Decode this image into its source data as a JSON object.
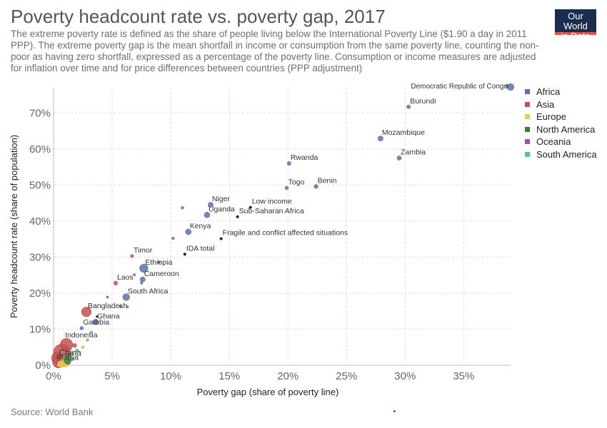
{
  "title": "Poverty headcount rate vs. poverty gap, 2017",
  "subtitle": "The extreme poverty rate is defined as the share of people living below the International Poverty Line ($1.90 a day in 2011 PPP). The extreme poverty gap is the mean shortfall in income or consumption from the same poverty line, counting the non-poor as having zero shortfall, expressed as a percentage of the poverty line. Consumption or income measures are adjusted for inflation over time and for price differences between countries (PPP adjustment)",
  "logo": {
    "line1": "Our World",
    "line2": "in Data"
  },
  "source": "Source: World Bank",
  "colors": {
    "Africa": "#5a72b0",
    "Asia": "#c6504f",
    "Europe": "#f2c94c",
    "North America": "#3d7a3d",
    "Oceania": "#a64cbc",
    "South America": "#5fc08e",
    "aggregate": "#222222"
  },
  "legend": [
    "Africa",
    "Asia",
    "Europe",
    "North America",
    "Oceania",
    "South America"
  ],
  "chart_data": {
    "type": "scatter",
    "title": "Poverty headcount rate vs. poverty gap, 2017",
    "xlabel": "Poverty gap (share of poverty line)",
    "ylabel": "Poverty headcount rate (share of population)",
    "xlim": [
      0,
      39
    ],
    "ylim": [
      0,
      77
    ],
    "x_ticks": [
      0,
      5,
      10,
      15,
      20,
      25,
      30,
      35
    ],
    "x_tick_labels": [
      "0%",
      "5%",
      "10%",
      "15%",
      "20%",
      "25%",
      "30%",
      "35%"
    ],
    "y_ticks": [
      0,
      10,
      20,
      30,
      40,
      50,
      60,
      70
    ],
    "y_tick_labels": [
      "0%",
      "10%",
      "20%",
      "30%",
      "40%",
      "50%",
      "60%",
      "70%"
    ],
    "grid": true,
    "legend_position": "right",
    "points": [
      {
        "label": "Democratic Republic of Congo",
        "x": 39.0,
        "y": 77.2,
        "group": "Africa",
        "r": 5
      },
      {
        "label": "",
        "x": 38.7,
        "y": 77.5,
        "group": "Africa",
        "r": 2.5
      },
      {
        "label": "Burundi",
        "x": 30.3,
        "y": 71.7,
        "group": "Africa",
        "r": 2.8
      },
      {
        "label": "Mozambique",
        "x": 27.9,
        "y": 62.9,
        "group": "Africa",
        "r": 3.8
      },
      {
        "label": "Zambia",
        "x": 29.5,
        "y": 57.5,
        "group": "Africa",
        "r": 3.2
      },
      {
        "label": "Rwanda",
        "x": 20.1,
        "y": 56.0,
        "group": "Africa",
        "r": 2.8
      },
      {
        "label": "Togo",
        "x": 19.9,
        "y": 49.2,
        "group": "Africa",
        "r": 2.6
      },
      {
        "label": "Benin",
        "x": 22.4,
        "y": 49.6,
        "group": "Africa",
        "r": 3.0
      },
      {
        "label": "Niger",
        "x": 13.4,
        "y": 44.5,
        "group": "Africa",
        "r": 3.8
      },
      {
        "label": "Uganda",
        "x": 13.1,
        "y": 41.7,
        "group": "Africa",
        "r": 4.2
      },
      {
        "label": "",
        "x": 11.0,
        "y": 43.7,
        "group": "Africa",
        "r": 2.0
      },
      {
        "label": "Low income",
        "x": 16.8,
        "y": 43.8,
        "group": "aggregate",
        "r": 2
      },
      {
        "label": "Sub-Saharan Africa",
        "x": 15.7,
        "y": 41.2,
        "group": "aggregate",
        "r": 2
      },
      {
        "label": "Kenya",
        "x": 11.5,
        "y": 37.0,
        "group": "Africa",
        "r": 4.2
      },
      {
        "label": "",
        "x": 10.2,
        "y": 35.2,
        "group": "Africa",
        "r": 2.0
      },
      {
        "label": "Fragile and conflict affected situations",
        "x": 14.3,
        "y": 35.1,
        "group": "aggregate",
        "r": 2
      },
      {
        "label": "IDA total",
        "x": 11.2,
        "y": 30.8,
        "group": "aggregate",
        "r": 2
      },
      {
        "label": "Timor",
        "x": 6.7,
        "y": 30.3,
        "group": "Asia",
        "r": 2.4
      },
      {
        "label": "Ethiopia",
        "x": 7.7,
        "y": 26.9,
        "group": "Africa",
        "r": 6.0
      },
      {
        "label": "",
        "x": 9.0,
        "y": 28.6,
        "group": "Africa",
        "r": 2.0
      },
      {
        "label": "Cameroon",
        "x": 7.6,
        "y": 23.8,
        "group": "Africa",
        "r": 3.8
      },
      {
        "label": "",
        "x": 6.9,
        "y": 25.1,
        "group": "Oceania",
        "r": 1.8
      },
      {
        "label": "",
        "x": 7.5,
        "y": 22.8,
        "group": "Africa",
        "r": 1.8
      },
      {
        "label": "Laos",
        "x": 5.3,
        "y": 22.8,
        "group": "Asia",
        "r": 3.0
      },
      {
        "label": "South Africa",
        "x": 6.2,
        "y": 18.9,
        "group": "Africa",
        "r": 5.0
      },
      {
        "label": "",
        "x": 6.3,
        "y": 16.2,
        "group": "South America",
        "r": 2.0
      },
      {
        "label": "",
        "x": 4.6,
        "y": 18.9,
        "group": "Asia",
        "r": 1.8
      },
      {
        "label": "",
        "x": 5.7,
        "y": 16.3,
        "group": "Asia",
        "r": 1.8
      },
      {
        "label": "Bangladesh",
        "x": 2.8,
        "y": 14.8,
        "group": "Asia",
        "r": 7.0
      },
      {
        "label": "Ghana",
        "x": 3.6,
        "y": 12.0,
        "group": "Africa",
        "r": 4.2
      },
      {
        "label": "",
        "x": 3.7,
        "y": 13.5,
        "group": "aggregate",
        "r": 1.5
      },
      {
        "label": "Gambia",
        "x": 2.4,
        "y": 10.3,
        "group": "Africa",
        "r": 2.6
      },
      {
        "label": "",
        "x": 3.2,
        "y": 9.1,
        "group": "South America",
        "r": 2.0
      },
      {
        "label": "",
        "x": 2.9,
        "y": 7.0,
        "group": "South America",
        "r": 1.8
      },
      {
        "label": "Indonesia",
        "x": 1.1,
        "y": 5.7,
        "group": "Asia",
        "r": 9.0
      },
      {
        "label": "",
        "x": 1.8,
        "y": 5.5,
        "group": "Asia",
        "r": 3.0
      },
      {
        "label": "",
        "x": 2.5,
        "y": 5.0,
        "group": "Europe",
        "r": 2.0
      },
      {
        "label": "",
        "x": 2.0,
        "y": 4.0,
        "group": "South America",
        "r": 2.5
      },
      {
        "label": "",
        "x": 1.6,
        "y": 3.2,
        "group": "South America",
        "r": 2.5
      },
      {
        "label": "",
        "x": 1.3,
        "y": 2.8,
        "group": "North America",
        "r": 2.5
      },
      {
        "label": "China",
        "x": 0.7,
        "y": 3.5,
        "group": "Asia",
        "r": 12.0
      },
      {
        "label": "",
        "x": 0.3,
        "y": 2.0,
        "group": "Asia",
        "r": 8.0
      },
      {
        "label": "",
        "x": 0.4,
        "y": 0.8,
        "group": "Asia",
        "r": 8.0
      },
      {
        "label": "Russia",
        "x": 1.0,
        "y": 0.9,
        "group": "Europe",
        "r": 7.0
      },
      {
        "label": "",
        "x": 0.6,
        "y": 0.3,
        "group": "Europe",
        "r": 5.0
      },
      {
        "label": "",
        "x": 1.2,
        "y": 1.2,
        "group": "North America",
        "r": 5.0
      },
      {
        "label": "",
        "x": 1.6,
        "y": 1.7,
        "group": "South America",
        "r": 2.5
      },
      {
        "label": "",
        "x": 0.9,
        "y": 2.4,
        "group": "South America",
        "r": 2.5
      },
      {
        "label": "",
        "x": 1.4,
        "y": 2.2,
        "group": "South America",
        "r": 2.0
      }
    ]
  }
}
